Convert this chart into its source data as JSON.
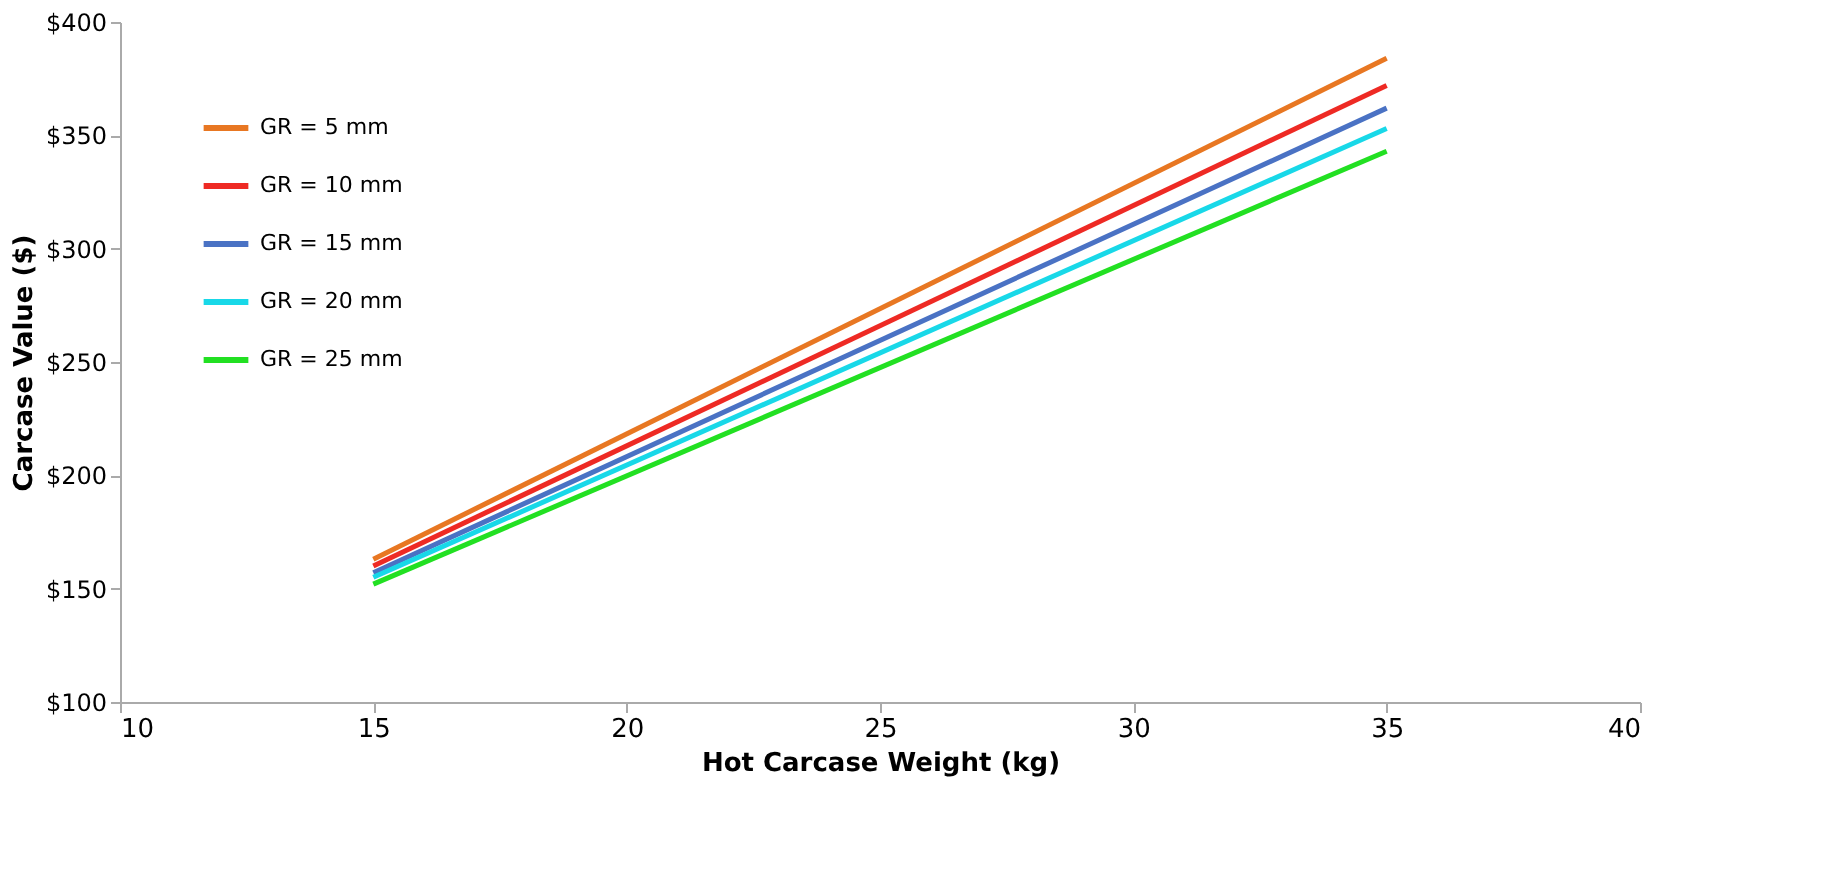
{
  "chart_data": {
    "type": "line",
    "xlabel": "Hot Carcase Weight (kg)",
    "ylabel": "Carcase Value ($)",
    "x": [
      15,
      35
    ],
    "series": [
      {
        "name": "GR = 5 mm",
        "color": "#e87722",
        "values": [
          163,
          384
        ]
      },
      {
        "name": "GR = 10 mm",
        "color": "#ee2a24",
        "values": [
          160,
          372
        ]
      },
      {
        "name": "GR = 15 mm",
        "color": "#4a72c4",
        "values": [
          157,
          362
        ]
      },
      {
        "name": "GR = 20 mm",
        "color": "#18d8e8",
        "values": [
          155,
          353
        ]
      },
      {
        "name": "GR = 25 mm",
        "color": "#22e022",
        "values": [
          152,
          343
        ]
      }
    ],
    "xlim": [
      10,
      40
    ],
    "xticks": [
      10,
      15,
      20,
      25,
      30,
      35,
      40
    ],
    "ylim": [
      100,
      400
    ],
    "yticks": [
      {
        "value": 100,
        "label": "$100"
      },
      {
        "value": 150,
        "label": "$150"
      },
      {
        "value": 200,
        "label": "$200"
      },
      {
        "value": 250,
        "label": "$250"
      },
      {
        "value": 300,
        "label": "$300"
      },
      {
        "value": 350,
        "label": "$350"
      },
      {
        "value": 400,
        "label": "$400"
      }
    ],
    "grid": false,
    "legend": "top left",
    "marker": "none",
    "line_style": "solid"
  }
}
